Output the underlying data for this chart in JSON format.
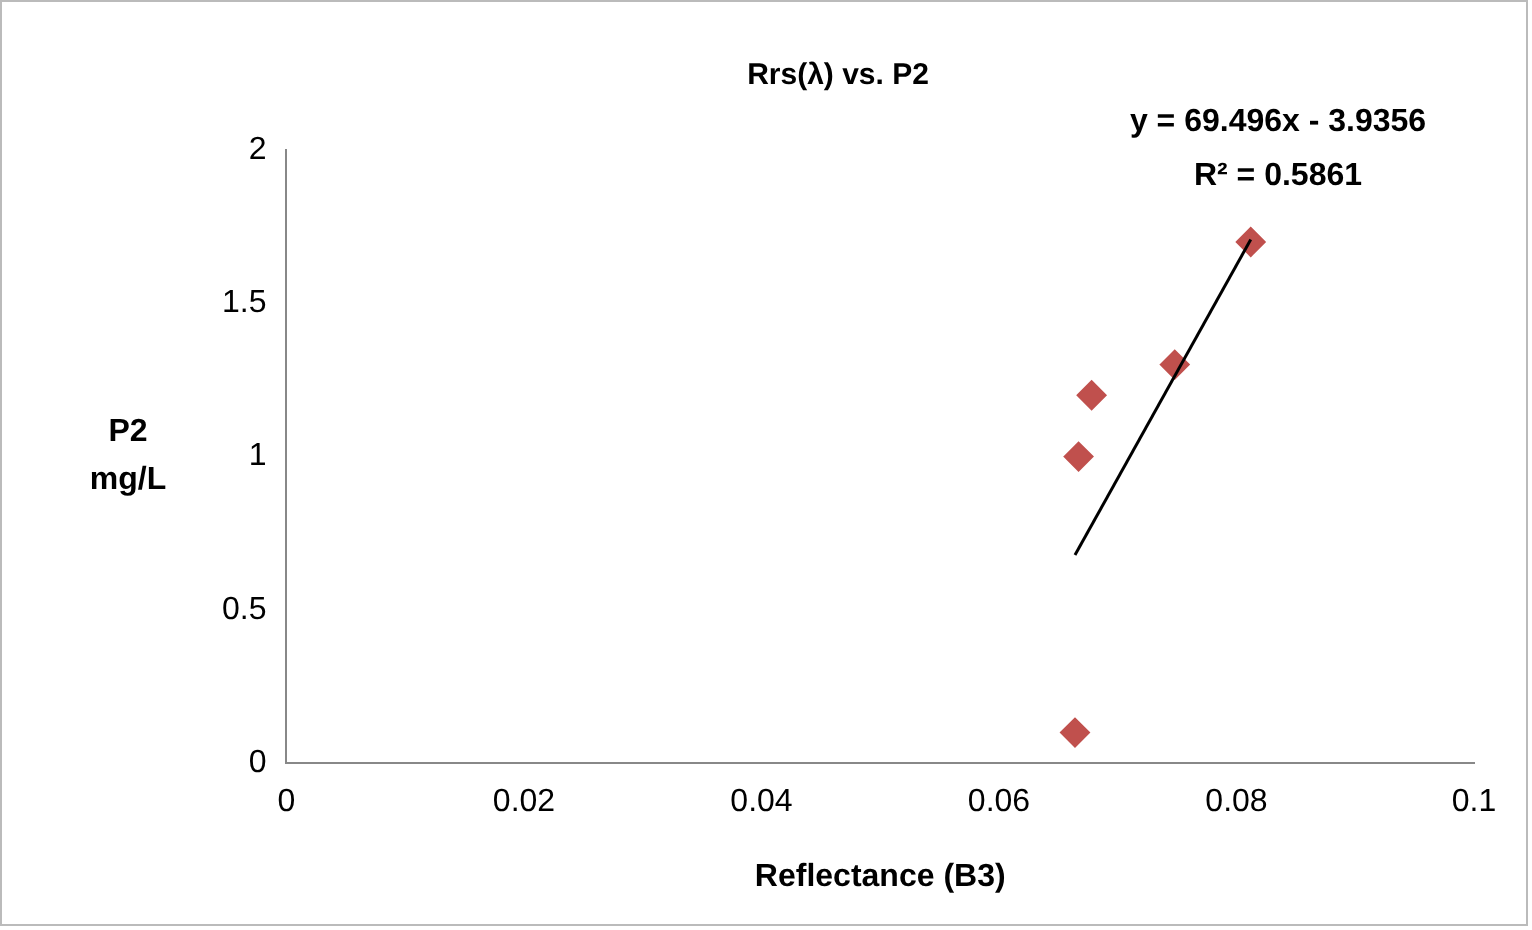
{
  "chart_data": {
    "type": "scatter",
    "title": "Rrs(λ) vs. P2",
    "xlabel": "Reflectance (B3)",
    "ylabel": "P2 mg/L",
    "annotations": [
      "y = 69.496x - 3.9356",
      "R² = 0.5861"
    ],
    "series": [
      {
        "type": "scatter",
        "color": "#c0504d",
        "marker": "diamond",
        "x": [
          0.0664,
          0.0667,
          0.0678,
          0.0748,
          0.0812
        ],
        "values": [
          0.1,
          1.0,
          1.2,
          1.3,
          1.7
        ]
      },
      {
        "type": "line",
        "color": "#000000",
        "marker": "none",
        "x": [
          0.0664,
          0.0812
        ],
        "values": [
          0.679,
          1.708
        ]
      }
    ],
    "xlim": [
      0,
      0.1
    ],
    "xticks": [
      0,
      0.02,
      0.04,
      0.06,
      0.08,
      0.1
    ],
    "ylim": [
      0,
      2
    ],
    "yticks": [
      0,
      0.5,
      1,
      1.5,
      2
    ],
    "grid": false,
    "legend": false
  }
}
